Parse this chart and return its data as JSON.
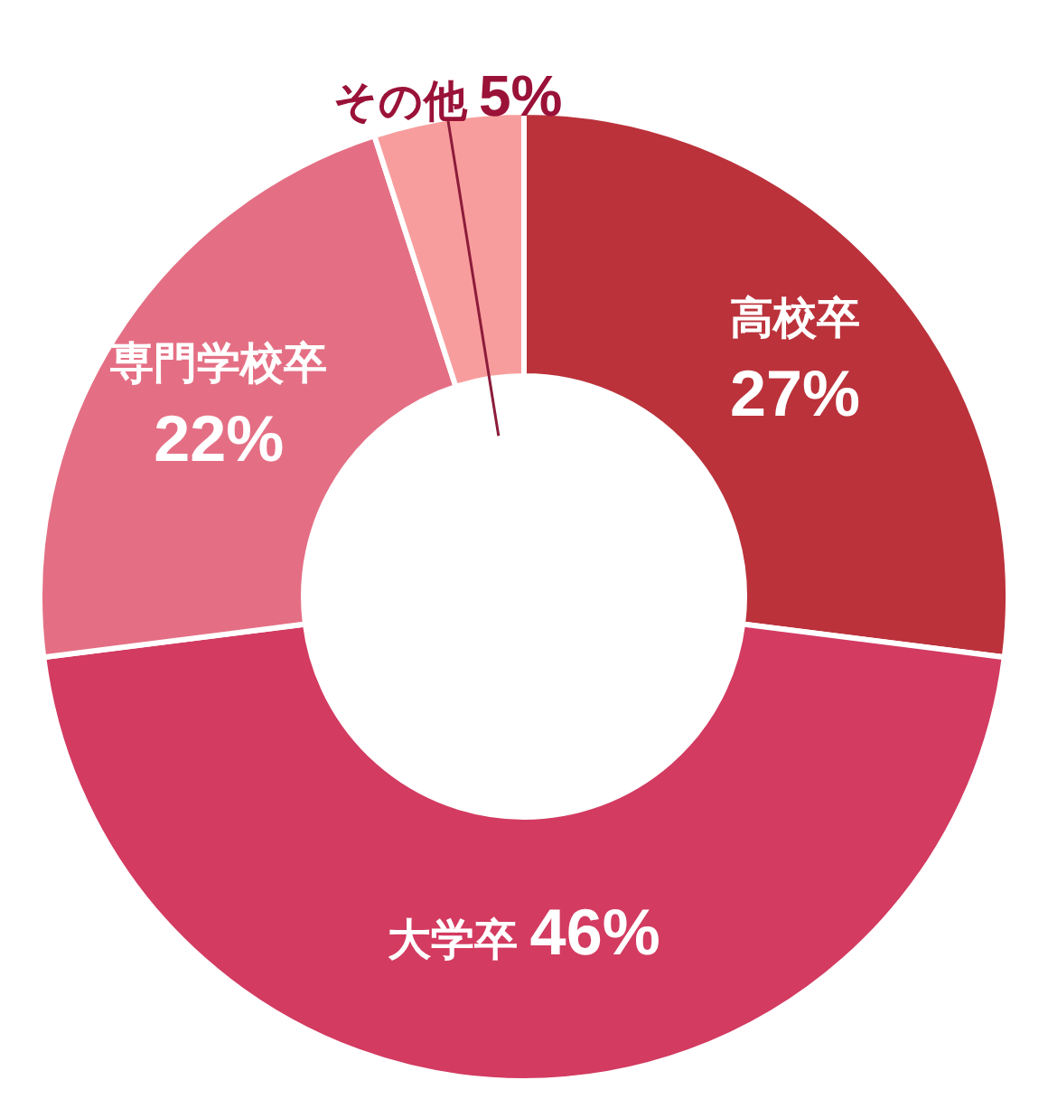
{
  "chart_data": {
    "type": "donut",
    "categories": [
      "高校卒",
      "大学卒",
      "専門学校卒",
      "その他"
    ],
    "values": [
      27,
      46,
      22,
      5
    ],
    "colors": [
      "#bb323b",
      "#d33b61",
      "#e46f84",
      "#f89d9d"
    ],
    "value_labels": [
      "27%",
      "46%",
      "22%",
      "5%"
    ]
  }
}
